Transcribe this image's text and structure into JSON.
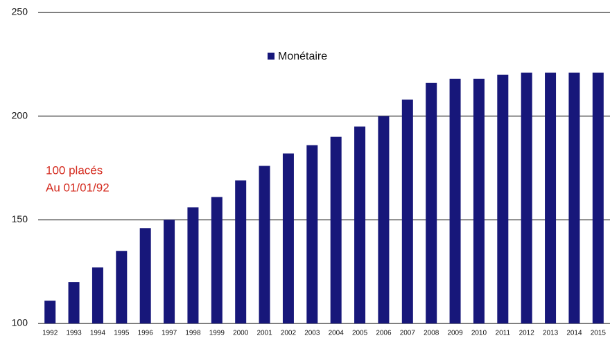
{
  "chart_data": {
    "type": "bar",
    "categories": [
      "1992",
      "1993",
      "1994",
      "1995",
      "1996",
      "1997",
      "1998",
      "1999",
      "2000",
      "2001",
      "2002",
      "2003",
      "2004",
      "2005",
      "2006",
      "2007",
      "2008",
      "2009",
      "2010",
      "2011",
      "2012",
      "2013",
      "2014",
      "2015"
    ],
    "series": [
      {
        "name": "Monétaire",
        "color": "#17177a",
        "values": [
          111,
          120,
          127,
          135,
          146,
          150,
          156,
          161,
          169,
          176,
          182,
          186,
          190,
          195,
          200,
          208,
          216,
          218,
          218,
          220,
          221,
          221,
          221,
          221
        ]
      }
    ],
    "ylim": [
      100,
      250
    ],
    "yticks": [
      100,
      150,
      200,
      250
    ],
    "grid": true,
    "legend": "top",
    "annotation": [
      "100 placés",
      "Au 01/01/92"
    ]
  }
}
